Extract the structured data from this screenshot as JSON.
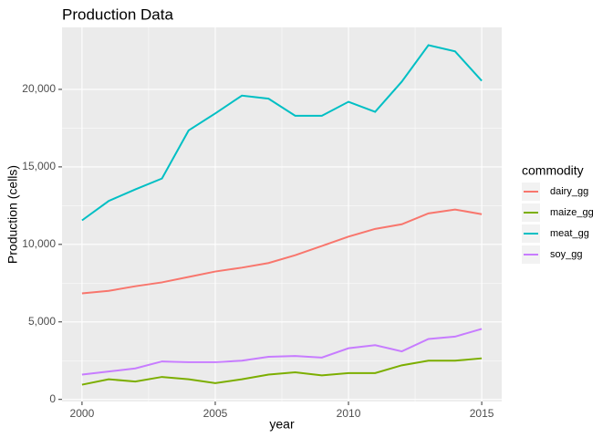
{
  "chart_data": {
    "type": "line",
    "title": "Production Data",
    "x_label": "year",
    "y_label": "Production (cells)",
    "x": [
      2000,
      2001,
      2002,
      2003,
      2004,
      2005,
      2006,
      2007,
      2008,
      2009,
      2010,
      2011,
      2012,
      2013,
      2014,
      2015
    ],
    "series": [
      {
        "name": "dairy_gg",
        "color": "#F8766D",
        "values": [
          6840,
          7000,
          7300,
          7550,
          7900,
          8250,
          8500,
          8800,
          9300,
          9900,
          10500,
          11000,
          11300,
          12000,
          12250,
          11950
        ]
      },
      {
        "name": "maize_gg",
        "color": "#7CAE00",
        "values": [
          950,
          1300,
          1150,
          1450,
          1300,
          1050,
          1300,
          1600,
          1750,
          1550,
          1700,
          1700,
          2200,
          2500,
          2500,
          2650
        ]
      },
      {
        "name": "meat_gg",
        "color": "#00BFC4",
        "values": [
          11550,
          12800,
          13550,
          14250,
          17350,
          18450,
          19600,
          19400,
          18300,
          18300,
          19200,
          18550,
          20500,
          22850,
          22450,
          20550
        ]
      },
      {
        "name": "soy_gg",
        "color": "#C77CFF",
        "values": [
          1600,
          1800,
          2000,
          2450,
          2400,
          2400,
          2500,
          2750,
          2800,
          2700,
          3300,
          3500,
          3100,
          3900,
          4050,
          4550
        ]
      }
    ],
    "legend_title": "commodity",
    "legend_position": "right",
    "xlim": [
      1999.25,
      2015.75
    ],
    "xticks": [
      2000,
      2005,
      2010,
      2015
    ],
    "ylim": [
      -135,
      24000
    ],
    "yticks": [
      0,
      {
        "value": 5000,
        "label": "5,000"
      },
      {
        "value": 10000,
        "label": "10,000"
      },
      {
        "value": 15000,
        "label": "15,000"
      },
      {
        "value": 20000,
        "label": "20,000"
      }
    ],
    "grid": true
  }
}
